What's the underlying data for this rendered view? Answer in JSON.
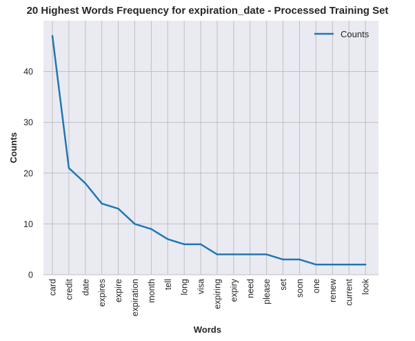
{
  "chart_data": {
    "type": "line",
    "title": "20 Highest Words Frequency for expiration_date - Processed Training Set",
    "xlabel": "Words",
    "ylabel": "Counts",
    "categories": [
      "card",
      "credit",
      "date",
      "expires",
      "expire",
      "expiration",
      "month",
      "tell",
      "long",
      "visa",
      "expiring",
      "expiry",
      "need",
      "please",
      "set",
      "soon",
      "one",
      "renew",
      "current",
      "look"
    ],
    "series": [
      {
        "name": "Counts",
        "values": [
          47,
          21,
          18,
          14,
          13,
          10,
          9,
          7,
          6,
          6,
          4,
          4,
          4,
          4,
          3,
          3,
          2,
          2,
          2,
          2
        ],
        "color": "#1f77b4"
      }
    ],
    "yticks": [
      0,
      10,
      20,
      30,
      40
    ],
    "ylim": [
      0,
      50
    ],
    "grid": true,
    "legend": "top-right",
    "background_color": "#eaeaf2",
    "grid_color": "#bfbfbf"
  }
}
